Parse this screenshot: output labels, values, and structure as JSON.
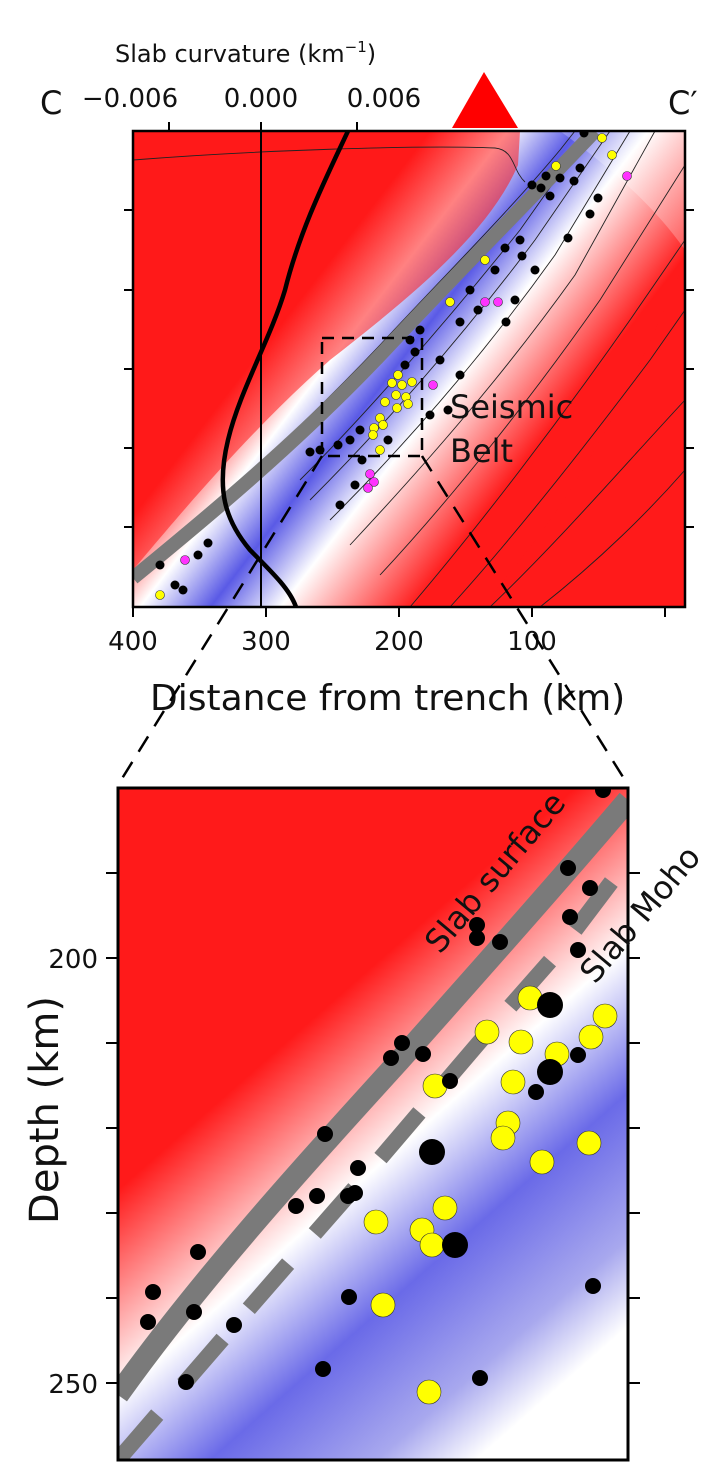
{
  "figure": {
    "top_axis_title": "Slab curvature (km",
    "top_axis_title_sup": "−1",
    "top_axis_title_end": ")",
    "top_ticks": [
      "−0.006",
      "0.000",
      "0.006"
    ],
    "section_start": "C",
    "section_end": "C′",
    "bottom_ticks": [
      "400",
      "300",
      "200",
      "100"
    ],
    "bottom_axis_title": "Distance from trench (km)",
    "annotation_seismic": "Seismic",
    "annotation_belt": "Belt",
    "zoom_label_slab_surface": "Slab surface",
    "zoom_label_slab_moho": "Slab Moho",
    "zoom_depth_ticks": [
      "200",
      "250"
    ],
    "zoom_y_title": "Depth (km)"
  },
  "colors": {
    "warm": "#ff1a1a",
    "cold": "#5a5ae6",
    "slab_band": "#7a7a7a",
    "eq_black": "#000000",
    "eq_yellow": "#ffff00",
    "eq_magenta": "#ff33ff",
    "volcano": "#ff0000"
  }
}
